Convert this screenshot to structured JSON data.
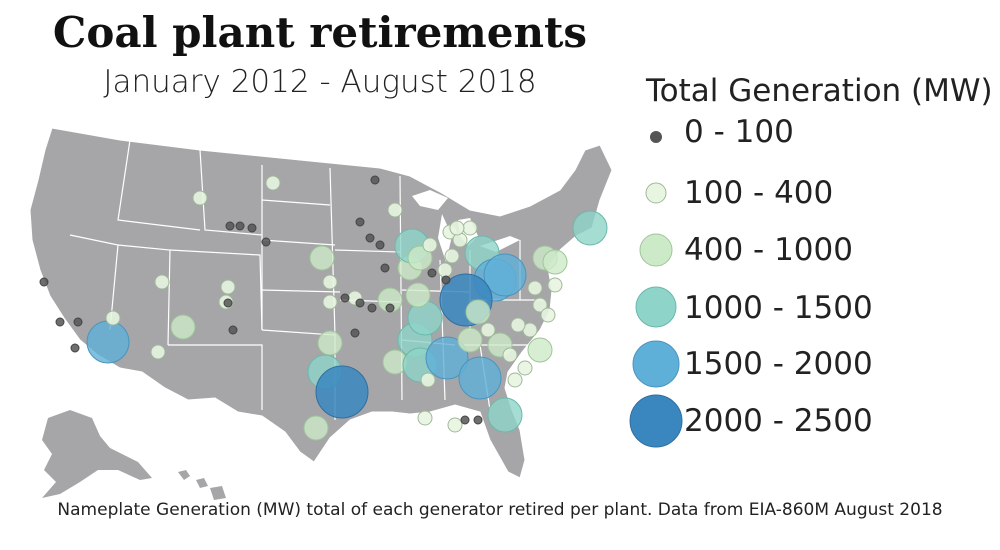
{
  "title": "Coal plant retirements",
  "subtitle": "January 2012 - August 2018",
  "caption": "Nameplate Generation (MW) total of each generator retired per plant. Data from EIA-860M August 2018",
  "legend": {
    "title": "Total Generation (MW)",
    "items": [
      {
        "label": "0 - 100",
        "color": "#555555"
      },
      {
        "label": "100 - 400",
        "color": "#e8f5e0"
      },
      {
        "label": "400 - 1000",
        "color": "#cdeac8"
      },
      {
        "label": "1000 - 1500",
        "color": "#8fd4c8"
      },
      {
        "label": "1500 - 2000",
        "color": "#5fb0d8"
      },
      {
        "label": "2000 - 2500",
        "color": "#3a87bf"
      }
    ]
  },
  "colors": {
    "land": "#a6a6a8",
    "borders": "#ffffff"
  }
}
